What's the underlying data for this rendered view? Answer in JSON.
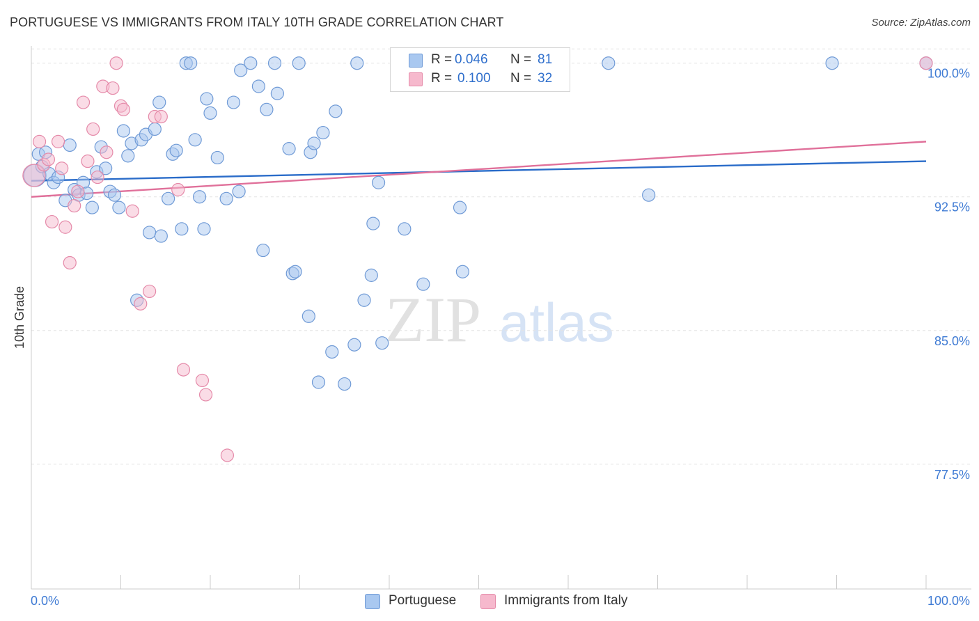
{
  "header": {
    "title": "PORTUGUESE VS IMMIGRANTS FROM ITALY 10TH GRADE CORRELATION CHART",
    "source": "Source: ZipAtlas.com"
  },
  "stats_legend": {
    "series1": {
      "r_label": "R =",
      "r_value": "0.046",
      "n_label": "N =",
      "n_value": "81"
    },
    "series2": {
      "r_label": "R =",
      "r_value": "0.100",
      "n_label": "N =",
      "n_value": "32"
    }
  },
  "bottom_legend": {
    "series1_label": "Portuguese",
    "series2_label": "Immigrants from Italy"
  },
  "watermark": {
    "zip": "ZIP",
    "atlas": "atlas"
  },
  "colors": {
    "series1_fill": "#a9c8f0",
    "series1_stroke": "#6f9ad6",
    "series1_line": "#2a6cc9",
    "series2_fill": "#f6b9cd",
    "series2_stroke": "#e58aa9",
    "series2_line": "#e0709a",
    "axis_label": "#3f7bd4",
    "grid": "#e3e3e3"
  },
  "chart_data": {
    "type": "scatter",
    "title": "PORTUGUESE VS IMMIGRANTS FROM ITALY 10TH GRADE CORRELATION CHART",
    "xlabel": "",
    "ylabel": "10th Grade",
    "xlim": [
      0,
      100
    ],
    "ylim": [
      70.5,
      101.2
    ],
    "x_tick_labels": [
      "0.0%",
      "100.0%"
    ],
    "y_ticks": [
      77.5,
      85.0,
      92.5,
      100.0
    ],
    "y_tick_labels": [
      "77.5%",
      "85.0%",
      "92.5%",
      "100.0%"
    ],
    "grid": true,
    "series": [
      {
        "name": "Portuguese",
        "r": 0.046,
        "n": 81,
        "trend": {
          "x": [
            0,
            100
          ],
          "y": [
            93.4,
            94.5
          ]
        },
        "points": [
          {
            "x": 0.4,
            "y": 93.7,
            "big": true
          },
          {
            "x": 0.8,
            "y": 94.9
          },
          {
            "x": 1.2,
            "y": 94.2
          },
          {
            "x": 1.6,
            "y": 95.0
          },
          {
            "x": 2.0,
            "y": 93.8
          },
          {
            "x": 2.5,
            "y": 93.3
          },
          {
            "x": 3.0,
            "y": 93.6
          },
          {
            "x": 3.8,
            "y": 92.3
          },
          {
            "x": 4.3,
            "y": 95.4
          },
          {
            "x": 4.8,
            "y": 92.9
          },
          {
            "x": 5.3,
            "y": 92.6
          },
          {
            "x": 5.8,
            "y": 93.3
          },
          {
            "x": 6.2,
            "y": 92.7
          },
          {
            "x": 6.8,
            "y": 91.9
          },
          {
            "x": 7.3,
            "y": 93.9
          },
          {
            "x": 7.8,
            "y": 95.3
          },
          {
            "x": 8.3,
            "y": 94.1
          },
          {
            "x": 8.8,
            "y": 92.8
          },
          {
            "x": 9.3,
            "y": 92.6
          },
          {
            "x": 9.8,
            "y": 91.9
          },
          {
            "x": 10.3,
            "y": 96.2
          },
          {
            "x": 10.8,
            "y": 94.8
          },
          {
            "x": 11.2,
            "y": 95.5
          },
          {
            "x": 11.8,
            "y": 86.7
          },
          {
            "x": 12.3,
            "y": 95.7
          },
          {
            "x": 12.8,
            "y": 96.0
          },
          {
            "x": 13.2,
            "y": 90.5
          },
          {
            "x": 13.8,
            "y": 96.3
          },
          {
            "x": 14.3,
            "y": 97.8
          },
          {
            "x": 14.5,
            "y": 90.3
          },
          {
            "x": 15.3,
            "y": 92.4
          },
          {
            "x": 15.8,
            "y": 94.9
          },
          {
            "x": 16.2,
            "y": 95.1
          },
          {
            "x": 16.8,
            "y": 90.7
          },
          {
            "x": 17.3,
            "y": 100.0
          },
          {
            "x": 17.8,
            "y": 100.0
          },
          {
            "x": 18.3,
            "y": 95.7
          },
          {
            "x": 18.8,
            "y": 92.5
          },
          {
            "x": 19.3,
            "y": 90.7
          },
          {
            "x": 19.6,
            "y": 98.0
          },
          {
            "x": 20.0,
            "y": 97.2
          },
          {
            "x": 20.8,
            "y": 94.7
          },
          {
            "x": 21.8,
            "y": 92.4
          },
          {
            "x": 22.6,
            "y": 97.8
          },
          {
            "x": 23.2,
            "y": 92.8
          },
          {
            "x": 23.4,
            "y": 99.6
          },
          {
            "x": 24.5,
            "y": 100.0
          },
          {
            "x": 25.4,
            "y": 98.7
          },
          {
            "x": 25.9,
            "y": 89.5
          },
          {
            "x": 26.3,
            "y": 97.4
          },
          {
            "x": 27.2,
            "y": 100.0
          },
          {
            "x": 27.5,
            "y": 98.3
          },
          {
            "x": 28.8,
            "y": 95.2
          },
          {
            "x": 29.2,
            "y": 88.2
          },
          {
            "x": 29.5,
            "y": 88.3
          },
          {
            "x": 29.9,
            "y": 100.0
          },
          {
            "x": 31.0,
            "y": 85.8
          },
          {
            "x": 31.2,
            "y": 95.0
          },
          {
            "x": 31.6,
            "y": 95.5
          },
          {
            "x": 32.1,
            "y": 82.1
          },
          {
            "x": 32.6,
            "y": 96.1
          },
          {
            "x": 33.6,
            "y": 83.8
          },
          {
            "x": 34.0,
            "y": 97.3
          },
          {
            "x": 35.0,
            "y": 82.0
          },
          {
            "x": 36.1,
            "y": 84.2
          },
          {
            "x": 36.4,
            "y": 100.0
          },
          {
            "x": 37.2,
            "y": 86.7
          },
          {
            "x": 38.0,
            "y": 88.1
          },
          {
            "x": 38.2,
            "y": 91.0
          },
          {
            "x": 38.8,
            "y": 93.3
          },
          {
            "x": 39.2,
            "y": 84.3
          },
          {
            "x": 41.7,
            "y": 90.7
          },
          {
            "x": 43.8,
            "y": 87.6
          },
          {
            "x": 44.4,
            "y": 100.0
          },
          {
            "x": 47.9,
            "y": 91.9
          },
          {
            "x": 48.2,
            "y": 88.3
          },
          {
            "x": 51.0,
            "y": 100.0
          },
          {
            "x": 64.5,
            "y": 100.0
          },
          {
            "x": 69.0,
            "y": 92.6
          },
          {
            "x": 89.5,
            "y": 100.0
          },
          {
            "x": 100.0,
            "y": 100.0
          }
        ]
      },
      {
        "name": "Immigrants from Italy",
        "r": 0.1,
        "n": 32,
        "trend": {
          "x": [
            0,
            100
          ],
          "y": [
            92.5,
            95.6
          ]
        },
        "points": [
          {
            "x": 0.3,
            "y": 93.7,
            "big": true
          },
          {
            "x": 0.9,
            "y": 95.6
          },
          {
            "x": 1.4,
            "y": 94.3
          },
          {
            "x": 1.9,
            "y": 94.6
          },
          {
            "x": 2.3,
            "y": 91.1
          },
          {
            "x": 3.0,
            "y": 95.6
          },
          {
            "x": 3.4,
            "y": 94.1
          },
          {
            "x": 3.8,
            "y": 90.8
          },
          {
            "x": 4.3,
            "y": 88.8
          },
          {
            "x": 4.8,
            "y": 92.0
          },
          {
            "x": 5.2,
            "y": 92.8
          },
          {
            "x": 5.8,
            "y": 97.8
          },
          {
            "x": 6.3,
            "y": 94.5
          },
          {
            "x": 6.9,
            "y": 96.3
          },
          {
            "x": 7.4,
            "y": 93.6
          },
          {
            "x": 8.0,
            "y": 98.7
          },
          {
            "x": 8.4,
            "y": 95.0
          },
          {
            "x": 9.1,
            "y": 98.6
          },
          {
            "x": 9.5,
            "y": 100.0
          },
          {
            "x": 10.0,
            "y": 97.6
          },
          {
            "x": 10.3,
            "y": 97.4
          },
          {
            "x": 11.3,
            "y": 91.7
          },
          {
            "x": 12.2,
            "y": 86.5
          },
          {
            "x": 13.2,
            "y": 87.2
          },
          {
            "x": 13.8,
            "y": 97.0
          },
          {
            "x": 14.5,
            "y": 97.0
          },
          {
            "x": 16.4,
            "y": 92.9
          },
          {
            "x": 17.0,
            "y": 82.8
          },
          {
            "x": 19.1,
            "y": 82.2
          },
          {
            "x": 19.5,
            "y": 81.4
          },
          {
            "x": 21.9,
            "y": 78.0
          },
          {
            "x": 100.0,
            "y": 100.0
          }
        ]
      }
    ]
  }
}
